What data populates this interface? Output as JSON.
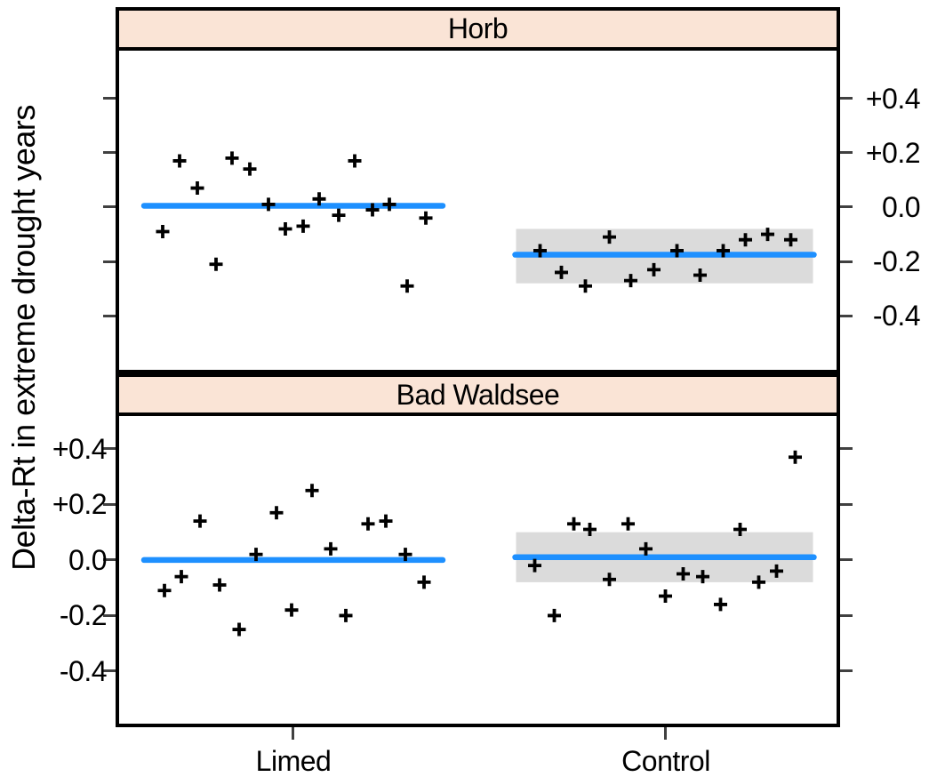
{
  "chart_data": {
    "type": "scatter",
    "subtype": "faceted-jitter-strip-plot",
    "marker": "+",
    "ylabel": "Delta-Rt in extreme drought years",
    "xlabel": "",
    "categories": [
      "Limed",
      "Control"
    ],
    "ytick_values": [
      0.4,
      0.2,
      0.0,
      -0.2,
      -0.4
    ],
    "ytick_labels": [
      "+0.4",
      "+0.2",
      "0.0",
      "-0.2",
      "-0.4"
    ],
    "grid": "off",
    "legend": "none",
    "panels": [
      {
        "title": "Horb",
        "ylim": [
          -0.598,
          0.575
        ],
        "ytick_label_side": "right",
        "groups": [
          {
            "category": "Limed",
            "mean_line": 0.005,
            "band": null,
            "points": [
              {
                "dx": -147,
                "v": -0.09
              },
              {
                "dx": -128,
                "v": 0.17
              },
              {
                "dx": -108,
                "v": 0.07
              },
              {
                "dx": -87,
                "v": -0.21
              },
              {
                "dx": -69,
                "v": 0.18
              },
              {
                "dx": -49,
                "v": 0.14
              },
              {
                "dx": -28,
                "v": 0.01
              },
              {
                "dx": -9,
                "v": -0.08
              },
              {
                "dx": 11,
                "v": -0.07
              },
              {
                "dx": 29,
                "v": 0.03
              },
              {
                "dx": 51,
                "v": -0.03
              },
              {
                "dx": 69,
                "v": 0.17
              },
              {
                "dx": 89,
                "v": -0.01
              },
              {
                "dx": 108,
                "v": 0.01
              },
              {
                "dx": 128,
                "v": -0.29
              },
              {
                "dx": 149,
                "v": -0.04
              }
            ]
          },
          {
            "category": "Control",
            "mean_line": -0.175,
            "band": [
              -0.28,
              -0.08
            ],
            "points": [
              {
                "dx": -140,
                "v": -0.16
              },
              {
                "dx": -116,
                "v": -0.24
              },
              {
                "dx": -89,
                "v": -0.29
              },
              {
                "dx": -62,
                "v": -0.11
              },
              {
                "dx": -38,
                "v": -0.27
              },
              {
                "dx": -12,
                "v": -0.23
              },
              {
                "dx": 14,
                "v": -0.16
              },
              {
                "dx": 40,
                "v": -0.25
              },
              {
                "dx": 66,
                "v": -0.16
              },
              {
                "dx": 91,
                "v": -0.12
              },
              {
                "dx": 116,
                "v": -0.1
              },
              {
                "dx": 142,
                "v": -0.12
              }
            ]
          }
        ]
      },
      {
        "title": "Bad Waldsee",
        "ylim": [
          -0.589,
          0.518
        ],
        "ytick_label_side": "left",
        "groups": [
          {
            "category": "Limed",
            "mean_line": 0.0,
            "band": null,
            "points": [
              {
                "dx": -145,
                "v": -0.11
              },
              {
                "dx": -126,
                "v": -0.06
              },
              {
                "dx": -105,
                "v": 0.14
              },
              {
                "dx": -83,
                "v": -0.09
              },
              {
                "dx": -61,
                "v": -0.25
              },
              {
                "dx": -42,
                "v": 0.02
              },
              {
                "dx": -19,
                "v": 0.17
              },
              {
                "dx": -2,
                "v": -0.18
              },
              {
                "dx": 21,
                "v": 0.25
              },
              {
                "dx": 42,
                "v": 0.04
              },
              {
                "dx": 59,
                "v": -0.2
              },
              {
                "dx": 84,
                "v": 0.13
              },
              {
                "dx": 104,
                "v": 0.14
              },
              {
                "dx": 126,
                "v": 0.02
              },
              {
                "dx": 147,
                "v": -0.08
              }
            ]
          },
          {
            "category": "Control",
            "mean_line": 0.01,
            "band": [
              -0.08,
              0.1
            ],
            "points": [
              {
                "dx": -146,
                "v": -0.02
              },
              {
                "dx": -124,
                "v": -0.2
              },
              {
                "dx": -102,
                "v": 0.13
              },
              {
                "dx": -84,
                "v": 0.11
              },
              {
                "dx": -62,
                "v": -0.07
              },
              {
                "dx": -41,
                "v": 0.13
              },
              {
                "dx": -21,
                "v": 0.04
              },
              {
                "dx": 1,
                "v": -0.13
              },
              {
                "dx": 21,
                "v": -0.05
              },
              {
                "dx": 43,
                "v": -0.06
              },
              {
                "dx": 63,
                "v": -0.16
              },
              {
                "dx": 85,
                "v": 0.11
              },
              {
                "dx": 106,
                "v": -0.08
              },
              {
                "dx": 126,
                "v": -0.04
              },
              {
                "dx": 147,
                "v": 0.37
              }
            ]
          }
        ]
      }
    ],
    "colors": {
      "mean_line": "#1E90FF",
      "band": "#DBDBDB",
      "points": "#000000",
      "panel_header_fill": "#FAE4D6",
      "panel_border": "#000000",
      "tick": "#404040",
      "text": "#000000",
      "background": "#FFFFFF"
    }
  }
}
